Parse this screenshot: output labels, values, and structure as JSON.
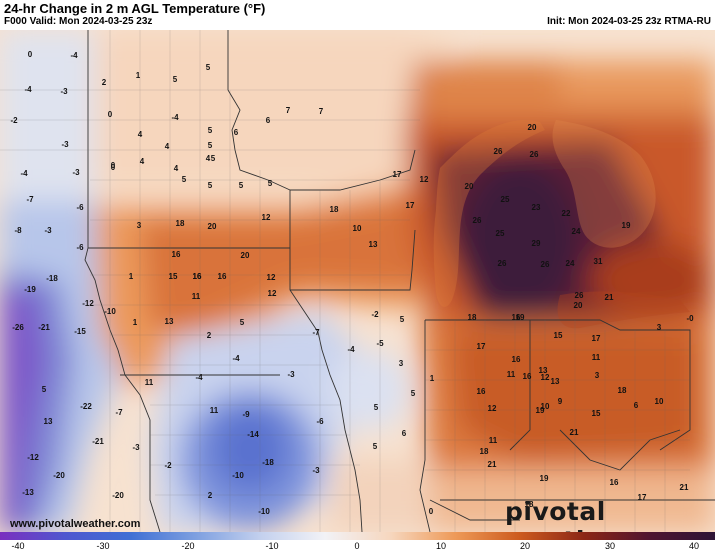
{
  "header": {
    "title": "24-hr Change in 2 m AGL Temperature (°F)",
    "valid": "F000 Valid: Mon 2024-03-25 23z",
    "init": "Init: Mon 2024-03-25 23z RTMA-RU"
  },
  "branding": {
    "logo": "pivotal weather",
    "site": "www.pivotalweather.com"
  },
  "colorbar": {
    "ticks": [
      "-40",
      "-30",
      "-20",
      "-10",
      "0",
      "10",
      "20",
      "30",
      "40"
    ],
    "colors": [
      "#7b2fbf",
      "#4f57cf",
      "#3f6fd4",
      "#7d9fe0",
      "#c3d0ee",
      "#f2f2f6",
      "#f6d7bf",
      "#ee9a58",
      "#cc5a1e",
      "#8b2616",
      "#4f1530",
      "#2e1436"
    ]
  },
  "values": [
    {
      "t": "0"
    },
    {
      "t": "-4"
    },
    {
      "t": "-4"
    },
    {
      "t": "-3"
    },
    {
      "t": "2"
    },
    {
      "t": "1"
    },
    {
      "t": "5"
    },
    {
      "t": "5"
    },
    {
      "t": "0"
    },
    {
      "t": "-4"
    },
    {
      "t": "0"
    },
    {
      "t": "4"
    },
    {
      "t": "4"
    },
    {
      "t": "-2"
    },
    {
      "t": "4"
    },
    {
      "t": "4"
    },
    {
      "t": "5"
    },
    {
      "t": "6"
    },
    {
      "t": "7"
    },
    {
      "t": "7"
    },
    {
      "t": "-3"
    },
    {
      "t": "-3"
    },
    {
      "t": "0"
    },
    {
      "t": "4"
    },
    {
      "t": "5"
    },
    {
      "t": "5"
    },
    {
      "t": "6"
    },
    {
      "t": "-4"
    },
    {
      "t": "5"
    },
    {
      "t": "5"
    },
    {
      "t": "5"
    },
    {
      "t": "5"
    },
    {
      "t": "-7"
    },
    {
      "t": "-6"
    },
    {
      "t": "3"
    },
    {
      "t": "18"
    },
    {
      "t": "20"
    },
    {
      "t": "12"
    },
    {
      "t": "18"
    },
    {
      "t": "10"
    },
    {
      "t": "17"
    },
    {
      "t": "-8"
    },
    {
      "t": "-3"
    },
    {
      "t": "-6"
    },
    {
      "t": "16"
    },
    {
      "t": "20"
    },
    {
      "t": "16"
    },
    {
      "t": "15"
    },
    {
      "t": "12"
    },
    {
      "t": "13"
    },
    {
      "t": "-19"
    },
    {
      "t": "-18"
    },
    {
      "t": "-12"
    },
    {
      "t": "-10"
    },
    {
      "t": "1"
    },
    {
      "t": "16"
    },
    {
      "t": "16"
    },
    {
      "t": "11"
    },
    {
      "t": "12"
    },
    {
      "t": "-26"
    },
    {
      "t": "-21"
    },
    {
      "t": "-15"
    },
    {
      "t": "1"
    },
    {
      "t": "13"
    },
    {
      "t": "5"
    },
    {
      "t": "2"
    },
    {
      "t": "5"
    },
    {
      "t": "-22"
    },
    {
      "t": "-7"
    },
    {
      "t": "11"
    },
    {
      "t": "13"
    },
    {
      "t": "-21"
    },
    {
      "t": "-3"
    },
    {
      "t": "11"
    },
    {
      "t": "-9"
    },
    {
      "t": "-14"
    },
    {
      "t": "-12"
    },
    {
      "t": "-20"
    },
    {
      "t": "-18"
    },
    {
      "t": "-13"
    },
    {
      "t": "-20"
    },
    {
      "t": "2"
    },
    {
      "t": "-10"
    },
    {
      "t": "-10"
    },
    {
      "t": "-4"
    },
    {
      "t": "-4"
    },
    {
      "t": "-2"
    },
    {
      "t": "-7"
    },
    {
      "t": "-3"
    },
    {
      "t": "-6"
    },
    {
      "t": "-3"
    },
    {
      "t": "-2"
    },
    {
      "t": "-5"
    },
    {
      "t": "-4"
    },
    {
      "t": "5"
    },
    {
      "t": "3"
    },
    {
      "t": "5"
    },
    {
      "t": "5"
    },
    {
      "t": "5"
    },
    {
      "t": "1"
    },
    {
      "t": "6"
    },
    {
      "t": "0"
    },
    {
      "t": "17"
    },
    {
      "t": "12"
    },
    {
      "t": "20"
    },
    {
      "t": "26"
    },
    {
      "t": "26"
    },
    {
      "t": "20"
    },
    {
      "t": "25"
    },
    {
      "t": "26"
    },
    {
      "t": "23"
    },
    {
      "t": "22"
    },
    {
      "t": "24"
    },
    {
      "t": "25"
    },
    {
      "t": "29"
    },
    {
      "t": "26"
    },
    {
      "t": "24"
    },
    {
      "t": "26"
    },
    {
      "t": "31"
    },
    {
      "t": "26"
    },
    {
      "t": "20"
    },
    {
      "t": "21"
    },
    {
      "t": "19"
    },
    {
      "t": "19"
    },
    {
      "t": "16"
    },
    {
      "t": "15"
    },
    {
      "t": "17"
    },
    {
      "t": "18"
    },
    {
      "t": "17"
    },
    {
      "t": "16"
    },
    {
      "t": "13"
    },
    {
      "t": "11"
    },
    {
      "t": "13"
    },
    {
      "t": "16"
    },
    {
      "t": "16"
    },
    {
      "t": "11"
    },
    {
      "t": "12"
    },
    {
      "t": "9"
    },
    {
      "t": "3"
    },
    {
      "t": "6"
    },
    {
      "t": "15"
    },
    {
      "t": "18"
    },
    {
      "t": "10"
    },
    {
      "t": "21"
    },
    {
      "t": "19"
    },
    {
      "t": "11"
    },
    {
      "t": "10"
    },
    {
      "t": "12"
    },
    {
      "t": "18"
    },
    {
      "t": "21"
    },
    {
      "t": "19"
    },
    {
      "t": "18"
    },
    {
      "t": "16"
    },
    {
      "t": "17"
    },
    {
      "t": "21"
    },
    {
      "t": "3"
    },
    {
      "t": "-0"
    }
  ]
}
